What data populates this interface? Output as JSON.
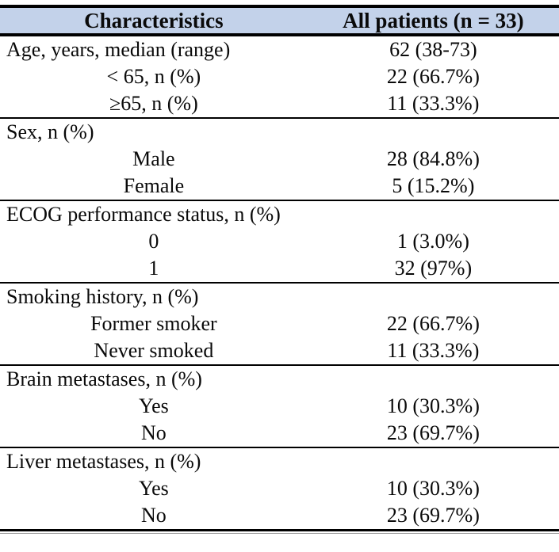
{
  "style": {
    "header_bg": "#C3D2EA",
    "border_color": "#000000",
    "text_color": "#0a0a0a"
  },
  "table": {
    "header": {
      "col1": "Characteristics",
      "col2": "All patients (n = 33)"
    },
    "rows": [
      {
        "label": "Age, years, median (range)",
        "value": "62 (38-73)"
      },
      {
        "label": "< 65, n (%)",
        "value": "22 (66.7%)"
      },
      {
        "label": "≥65, n (%)",
        "value": "11 (33.3%)"
      },
      {
        "label": "Sex, n (%)",
        "value": ""
      },
      {
        "label": "Male",
        "value": "28 (84.8%)"
      },
      {
        "label": "Female",
        "value": "5 (15.2%)"
      },
      {
        "label": "ECOG performance status, n (%)",
        "value": ""
      },
      {
        "label": "0",
        "value": "1 (3.0%)"
      },
      {
        "label": "1",
        "value": "32 (97%)"
      },
      {
        "label": "Smoking history, n (%)",
        "value": ""
      },
      {
        "label": "Former smoker",
        "value": "22 (66.7%)"
      },
      {
        "label": "Never smoked",
        "value": "11 (33.3%)"
      },
      {
        "label": "Brain metastases, n (%)",
        "value": ""
      },
      {
        "label": "Yes",
        "value": "10 (30.3%)"
      },
      {
        "label": "No",
        "value": "23 (69.7%)"
      },
      {
        "label": "Liver metastases, n (%)",
        "value": ""
      },
      {
        "label": "Yes",
        "value": "10 (30.3%)"
      },
      {
        "label": "No",
        "value": "23 (69.7%)"
      }
    ]
  }
}
